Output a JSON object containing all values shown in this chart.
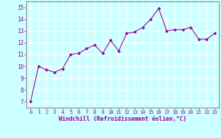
{
  "x": [
    0,
    1,
    2,
    3,
    4,
    5,
    6,
    7,
    8,
    9,
    10,
    11,
    12,
    13,
    14,
    15,
    16,
    17,
    18,
    19,
    20,
    21,
    22,
    23
  ],
  "y": [
    7.0,
    10.0,
    9.7,
    9.5,
    9.8,
    11.0,
    11.1,
    11.5,
    11.8,
    11.1,
    12.2,
    11.3,
    12.8,
    12.9,
    13.3,
    14.0,
    14.9,
    13.0,
    13.1,
    13.1,
    13.3,
    12.3,
    12.3,
    12.8
  ],
  "line_color": "#990099",
  "marker": "D",
  "marker_size": 2,
  "bg_color": "#ccffff",
  "grid_color": "#aadddd",
  "xlabel": "Windchill (Refroidissement éolien,°C)",
  "ylabel": "",
  "xlim": [
    -0.5,
    23.5
  ],
  "ylim": [
    6.5,
    15.5
  ],
  "yticks": [
    7,
    8,
    9,
    10,
    11,
    12,
    13,
    14,
    15
  ],
  "xticks": [
    0,
    1,
    2,
    3,
    4,
    5,
    6,
    7,
    8,
    9,
    10,
    11,
    12,
    13,
    14,
    15,
    16,
    17,
    18,
    19,
    20,
    21,
    22,
    23
  ],
  "tick_color": "#990099",
  "label_color": "#990099",
  "axis_color": "#990099",
  "spine_color": "#888888"
}
